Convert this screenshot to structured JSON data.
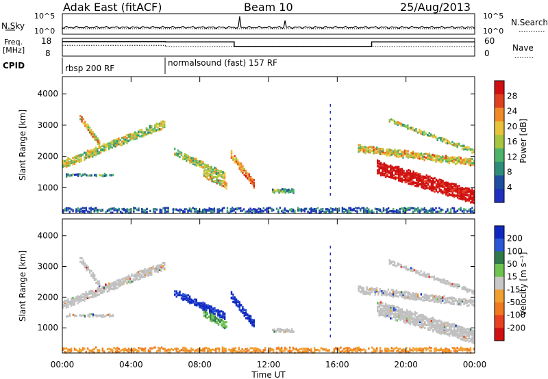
{
  "header": {
    "radar": "Adak East (fitACF)",
    "beam": "Beam 10",
    "date": "25/Aug/2013"
  },
  "noise_panel": {
    "left_label": "N.Sky",
    "right_label": "N.Search",
    "left_ticks": [
      "10^5",
      "10^0"
    ],
    "right_ticks": [
      "10^5",
      "10^0"
    ]
  },
  "freq_panel": {
    "left_label_top": "Freq.",
    "left_label_bottom": "[MHz]",
    "right_label": "Nave",
    "left_ticks": [
      "18",
      "8"
    ],
    "right_ticks": [
      "60",
      "0"
    ]
  },
  "cpid": {
    "label": "CPID",
    "segments": [
      {
        "text": "rbsp 200 RF",
        "start_hour": 0
      },
      {
        "text": "normalsound (fast) 157 RF",
        "start_hour": 6
      }
    ]
  },
  "colors": {
    "power_scale": [
      "#1f2fbf",
      "#1f4fa0",
      "#2e8c7a",
      "#4db36a",
      "#a6c640",
      "#e8c23a",
      "#f08a26",
      "#e0401f",
      "#d01010"
    ],
    "velocity_scale": [
      "#1028c0",
      "#2a56d8",
      "#2f7a4a",
      "#6cc34e",
      "#c8c8c8",
      "#f0a030",
      "#f07a20",
      "#e84020",
      "#d01010"
    ],
    "ground_scatter": "#c0c0c0"
  },
  "chart_data": [
    {
      "type": "heatmap",
      "name": "Power",
      "ylabel": "Slant Range [km]",
      "yticks": [
        1000,
        2000,
        3000,
        4000
      ],
      "ylim": [
        180,
        4550
      ],
      "xlim": [
        0,
        24
      ],
      "colorbar": {
        "label": "Power [dB]",
        "ticks": [
          "4",
          "8",
          "12",
          "16",
          "20",
          "24",
          "28"
        ],
        "range": [
          0,
          32
        ]
      }
    },
    {
      "type": "heatmap",
      "name": "Velocity",
      "ylabel": "Slant Range [km]",
      "yticks": [
        1000,
        2000,
        3000,
        4000
      ],
      "ylim": [
        180,
        4550
      ],
      "xlim": [
        0,
        24
      ],
      "xlabel": "Time UT",
      "xticks": [
        "00:00",
        "04:00",
        "08:00",
        "12:00",
        "16:00",
        "20:00",
        "00:00"
      ],
      "colorbar": {
        "label": "Velocity [m s⁻¹]",
        "ticks": [
          "200",
          "100",
          "50",
          "15",
          "-15",
          "-50",
          "-100",
          "-200"
        ],
        "range": [
          -250,
          250
        ]
      }
    }
  ]
}
